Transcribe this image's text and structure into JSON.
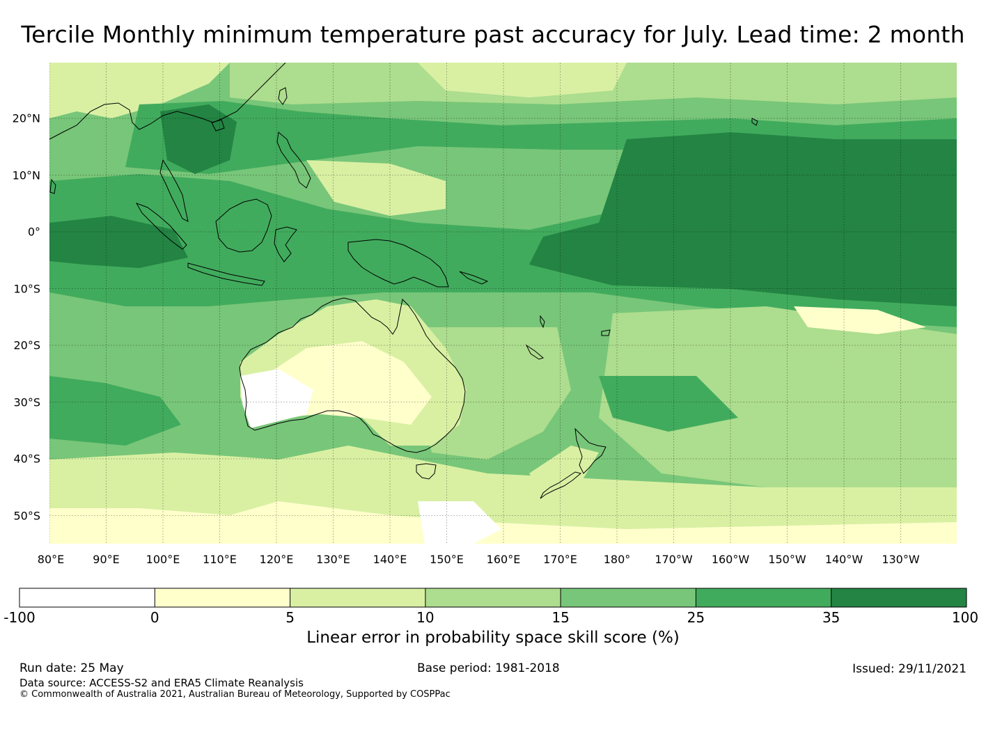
{
  "title": "Tercile Monthly minimum temperature past accuracy for July. Lead time: 2 month",
  "map": {
    "lat_labels": [
      "20°N",
      "10°N",
      "0°",
      "10°S",
      "20°S",
      "30°S",
      "40°S",
      "50°S"
    ],
    "lon_labels": [
      "80°E",
      "90°E",
      "100°E",
      "110°E",
      "120°E",
      "130°E",
      "140°E",
      "150°E",
      "160°E",
      "170°E",
      "180°",
      "170°W",
      "160°W",
      "150°W",
      "140°W",
      "130°W"
    ],
    "colors": {
      "c0": "#ffffff",
      "c1": "#ffffcc",
      "c2": "#d9f0a3",
      "c3": "#addd8e",
      "c4": "#78c679",
      "c5": "#41ab5d",
      "c6": "#238443",
      "coast": "#000000"
    }
  },
  "colorbar": {
    "ticks": [
      "-100",
      "0",
      "5",
      "10",
      "15",
      "25",
      "35",
      "100"
    ],
    "label": "Linear error in probability space skill score (%)"
  },
  "footer": {
    "run_date": "Run date: 25 May",
    "base_period": "Base period: 1981-2018",
    "issued": "Issued: 29/11/2021",
    "data_source": "Data source: ACCESS-S2 and ERA5 Climate Reanalysis",
    "copyright": "© Commonwealth of Australia 2021, Australian Bureau of Meteorology, Supported by COSPPac"
  }
}
